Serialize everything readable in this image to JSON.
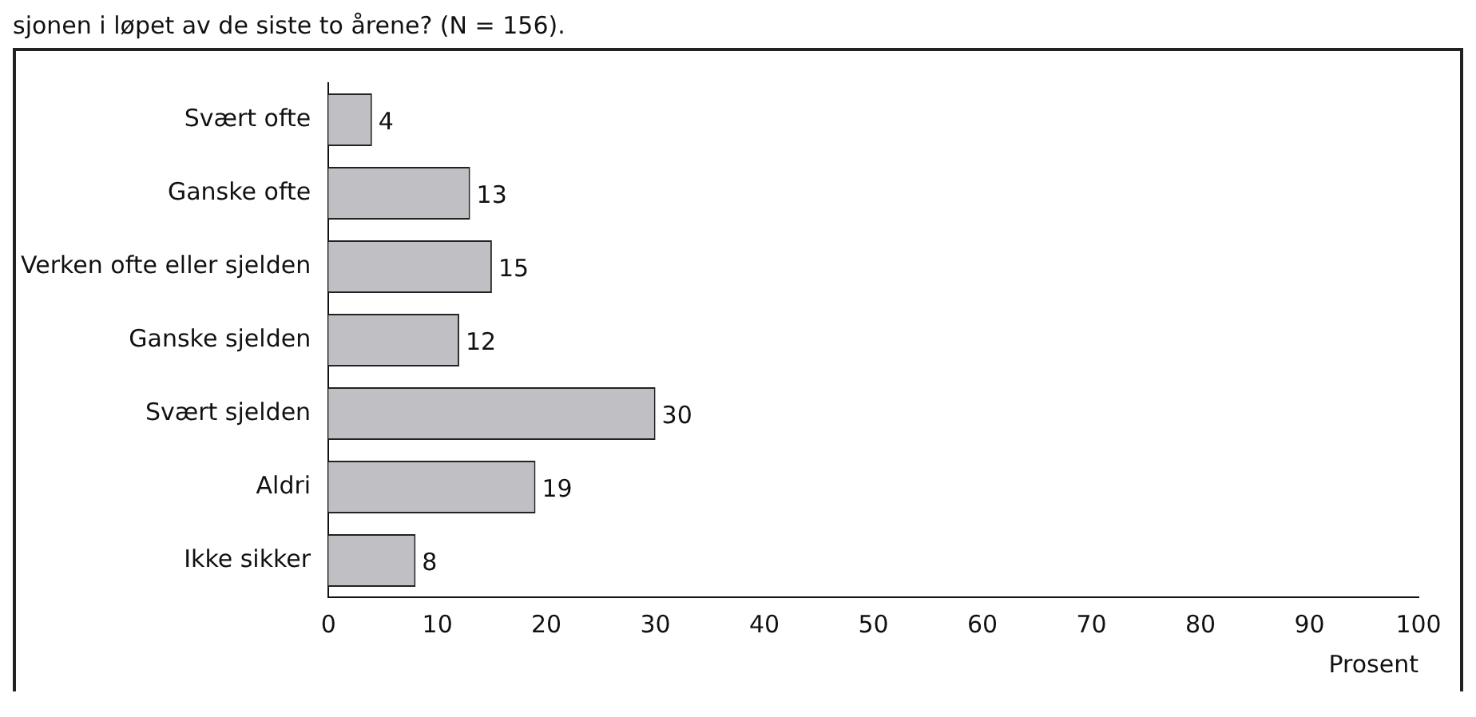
{
  "chart_data": {
    "type": "bar",
    "orientation": "horizontal",
    "title": "sjonen i løpet av de siste to årene? (N = 156).",
    "xlabel": "Prosent",
    "categories": [
      "Svært ofte",
      "Ganske ofte",
      "Verken ofte eller sjelden",
      "Ganske sjelden",
      "Svært sjelden",
      "Aldri",
      "Ikke sikker"
    ],
    "values": [
      4,
      13,
      15,
      12,
      30,
      19,
      8
    ],
    "color": "#c0c0c4",
    "xlim": [
      0,
      100
    ],
    "xticks": [
      0,
      10,
      20,
      30,
      40,
      50,
      60,
      70,
      80,
      90,
      100
    ],
    "grid": false,
    "legend": false,
    "data_labels": true
  }
}
